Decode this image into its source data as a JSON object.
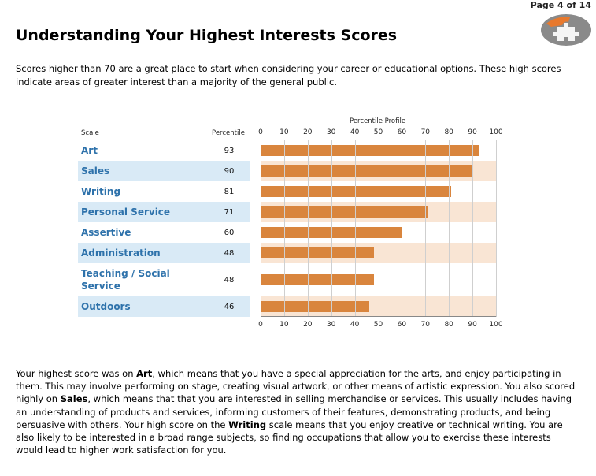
{
  "page_label": "Page 4 of 14",
  "logo_icon": "puzzle-logo-icon",
  "title": "Understanding Your Highest Interests Scores",
  "intro": "Scores higher than 70 are a great place to start when considering your career or educational options. These high scores indicate areas of greater interest than a majority of the general public.",
  "table": {
    "scale_header": "Scale",
    "percentile_header": "Percentile",
    "profile_header": "Percentile Profile"
  },
  "chart_data": {
    "type": "bar",
    "title": "Percentile Profile",
    "categories": [
      "Art",
      "Sales",
      "Writing",
      "Personal Service",
      "Assertive",
      "Administration",
      "Teaching / Social Service",
      "Outdoors"
    ],
    "values": [
      93,
      90,
      81,
      71,
      60,
      48,
      48,
      46
    ],
    "xlim": [
      0,
      100
    ],
    "ticks": [
      "0",
      "10",
      "20",
      "30",
      "40",
      "50",
      "60",
      "70",
      "80",
      "90",
      "100"
    ],
    "bar_color": "#d9853d",
    "shade_blue": "#d9eaf6",
    "shade_orange": "#f9e5d4",
    "label_color": "#2e72ab"
  },
  "summary": {
    "p1": "Your highest score was on ",
    "b1": "Art",
    "p2": ", which means that you have a special appreciation for the arts, and enjoy participating in them. This may involve performing on stage, creating visual artwork, or other means of artistic expression. You also scored highly on ",
    "b2": "Sales",
    "p3": ", which means that that you are interested in selling merchandise or services. This usually includes having an understanding of products and services, informing customers of their features, demonstrating products, and being persuasive with others. Your high score on the ",
    "b3": "Writing",
    "p4": " scale means that you enjoy creative or technical writing. You are also likely to be interested in a broad range subjects, so finding occupations that allow you to exercise these interests would lead to higher work satisfaction for you."
  }
}
